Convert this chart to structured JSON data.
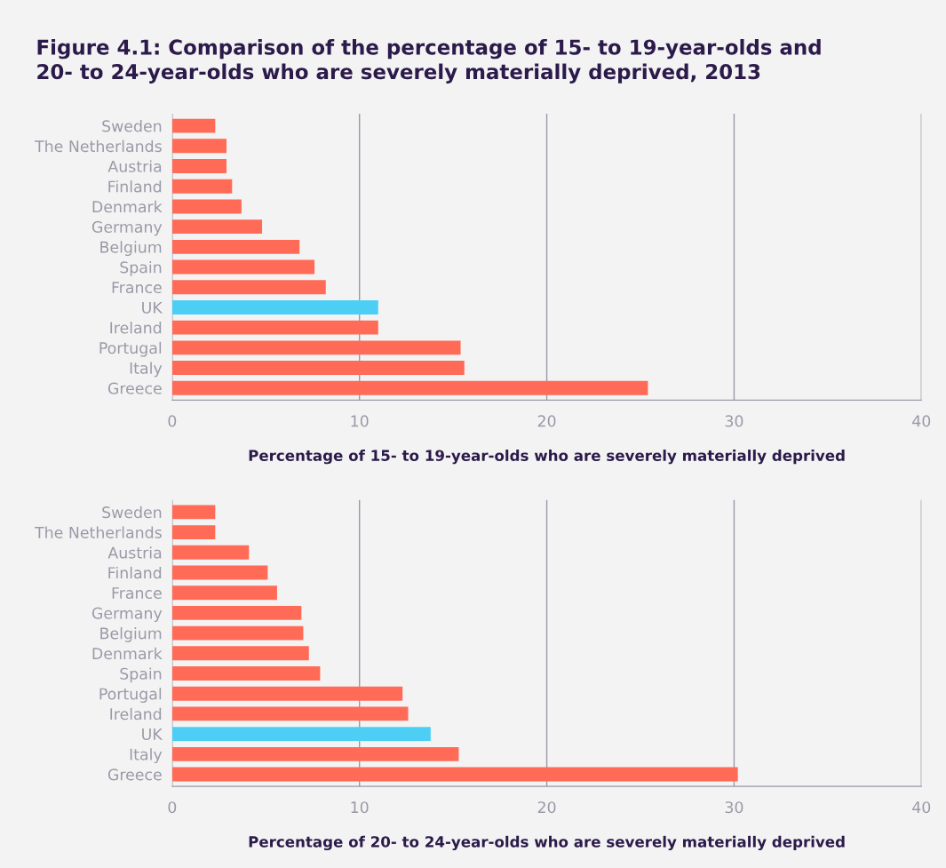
{
  "chart_data": [
    {
      "type": "bar",
      "orientation": "horizontal",
      "title": "Figure 4.1: Comparison of the percentage of 15- to 19-year-olds and\n20- to 24-year-olds who are severely materially deprived, 2013",
      "xlabel": "Percentage of 15- to 19-year-olds who are severely materially deprived",
      "categories": [
        "Sweden",
        "The Netherlands",
        "Austria",
        "Finland",
        "Denmark",
        "Germany",
        "Belgium",
        "Spain",
        "France",
        "UK",
        "Ireland",
        "Portugal",
        "Italy",
        "Greece"
      ],
      "values": [
        2.3,
        2.9,
        2.9,
        3.2,
        3.7,
        4.8,
        6.8,
        7.6,
        8.2,
        11.0,
        11.0,
        15.4,
        15.6,
        25.4
      ],
      "colors": [
        "#ff6b57",
        "#ff6b57",
        "#ff6b57",
        "#ff6b57",
        "#ff6b57",
        "#ff6b57",
        "#ff6b57",
        "#ff6b57",
        "#ff6b57",
        "#4dcff5",
        "#ff6b57",
        "#ff6b57",
        "#ff6b57",
        "#ff6b57"
      ],
      "xlim": [
        0,
        40
      ],
      "xticks": [
        0,
        10,
        20,
        30,
        40
      ],
      "grid": "x",
      "legend": false
    },
    {
      "type": "bar",
      "orientation": "horizontal",
      "xlabel": "Percentage of 20- to 24-year-olds who are severely materially deprived",
      "categories": [
        "Sweden",
        "The Netherlands",
        "Austria",
        "Finland",
        "France",
        "Germany",
        "Belgium",
        "Denmark",
        "Spain",
        "Portugal",
        "Ireland",
        "UK",
        "Italy",
        "Greece"
      ],
      "values": [
        2.3,
        2.3,
        4.1,
        5.1,
        5.6,
        6.9,
        7.0,
        7.3,
        7.9,
        12.3,
        12.6,
        13.8,
        15.3,
        30.2
      ],
      "colors": [
        "#ff6b57",
        "#ff6b57",
        "#ff6b57",
        "#ff6b57",
        "#ff6b57",
        "#ff6b57",
        "#ff6b57",
        "#ff6b57",
        "#ff6b57",
        "#ff6b57",
        "#ff6b57",
        "#4dcff5",
        "#ff6b57",
        "#ff6b57"
      ],
      "xlim": [
        0,
        40
      ],
      "xticks": [
        0,
        10,
        20,
        30,
        40
      ],
      "grid": "x",
      "legend": false
    }
  ]
}
